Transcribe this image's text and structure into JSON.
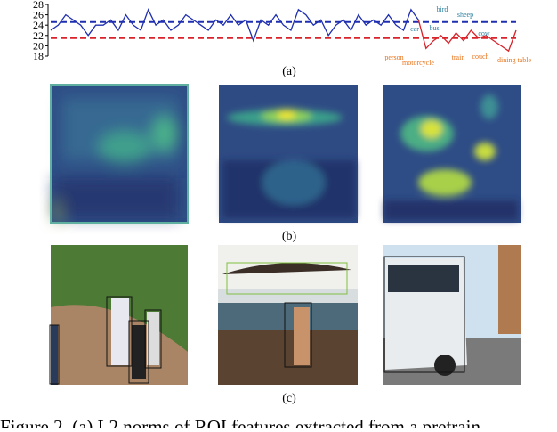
{
  "chart_data": {
    "type": "line",
    "ylim": [
      18,
      28
    ],
    "yticks": [
      18,
      20,
      22,
      24,
      26,
      28
    ],
    "series": [
      {
        "color": "#1f2fb0",
        "values": [
          23,
          24,
          26,
          25,
          24,
          22,
          24,
          24,
          25,
          23,
          26,
          24,
          23,
          27,
          24,
          25,
          23,
          24,
          26,
          25,
          24,
          23,
          25,
          24,
          26,
          24,
          25,
          21,
          25,
          24,
          26,
          24,
          23,
          27,
          26,
          24,
          25,
          22,
          24,
          25,
          23,
          26,
          24,
          25,
          24,
          26,
          24,
          23,
          27,
          25,
          null,
          null,
          null,
          null,
          null,
          null,
          null,
          null,
          null,
          null,
          null,
          null,
          null
        ]
      },
      {
        "color": "#d8232a",
        "values": [
          null,
          null,
          null,
          null,
          null,
          null,
          null,
          null,
          null,
          null,
          null,
          null,
          null,
          null,
          null,
          null,
          null,
          null,
          null,
          null,
          null,
          null,
          null,
          null,
          null,
          null,
          null,
          null,
          null,
          null,
          null,
          null,
          null,
          null,
          null,
          null,
          null,
          null,
          null,
          null,
          null,
          null,
          null,
          null,
          null,
          null,
          null,
          null,
          null,
          25,
          19.5,
          21,
          22,
          20.5,
          22.5,
          21,
          23,
          21.5,
          22,
          21,
          20,
          19,
          23
        ]
      }
    ],
    "hlines": [
      {
        "value": 24.6,
        "color": "#1f2fb0"
      },
      {
        "value": 21.5,
        "color": "#d8232a"
      }
    ],
    "annotations": [
      {
        "text": "person",
        "color": "#e8731a"
      },
      {
        "text": "car",
        "color": "#2a7f9e"
      },
      {
        "text": "motorcycle",
        "color": "#e8731a"
      },
      {
        "text": "bus",
        "color": "#2a7f9e"
      },
      {
        "text": "bird",
        "color": "#2a7f9e"
      },
      {
        "text": "train",
        "color": "#e8731a"
      },
      {
        "text": "sheep",
        "color": "#2a7f9e"
      },
      {
        "text": "cow",
        "color": "#2a7f9e"
      },
      {
        "text": "couch",
        "color": "#e8731a"
      },
      {
        "text": "dining table",
        "color": "#e8731a"
      }
    ]
  },
  "panels": {
    "a": "(a)",
    "b": "(b)",
    "c": "(c)"
  },
  "caption": "Figure 2. (a) L2 norms of ROI features extracted from a pretrain"
}
